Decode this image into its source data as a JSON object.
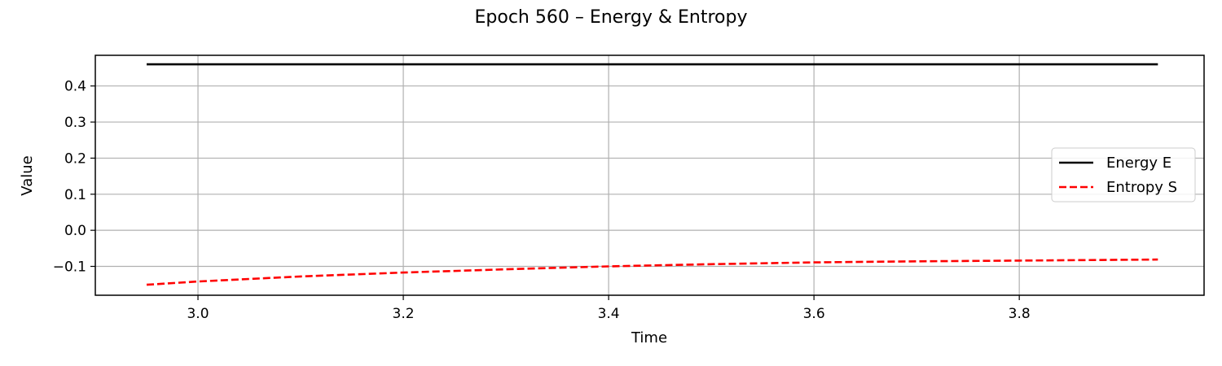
{
  "chart_data": {
    "type": "line",
    "title": "Epoch 560 – Energy & Entropy",
    "xlabel": "Time",
    "ylabel": "Value",
    "xlim": [
      2.9,
      3.98
    ],
    "ylim": [
      -0.18,
      0.485
    ],
    "xticks": [
      3.0,
      3.2,
      3.4,
      3.6,
      3.8
    ],
    "xtick_labels": [
      "3.0",
      "3.2",
      "3.4",
      "3.6",
      "3.8"
    ],
    "yticks": [
      -0.1,
      0.0,
      0.1,
      0.2,
      0.3,
      0.4
    ],
    "ytick_labels": [
      "−0.1",
      "0.0",
      "0.1",
      "0.2",
      "0.3",
      "0.4"
    ],
    "grid": true,
    "legend_position": "center-right",
    "series": [
      {
        "name": "Energy E",
        "color": "#000000",
        "style": "solid",
        "x": [
          2.95,
          3.935
        ],
        "y": [
          0.46,
          0.46
        ]
      },
      {
        "name": "Entropy S",
        "color": "#ff0000",
        "style": "dashed",
        "x": [
          2.95,
          3.0,
          3.1,
          3.2,
          3.3,
          3.4,
          3.5,
          3.6,
          3.7,
          3.8,
          3.935
        ],
        "y": [
          -0.151,
          -0.142,
          -0.128,
          -0.117,
          -0.108,
          -0.1,
          -0.094,
          -0.089,
          -0.086,
          -0.084,
          -0.081
        ]
      }
    ]
  }
}
